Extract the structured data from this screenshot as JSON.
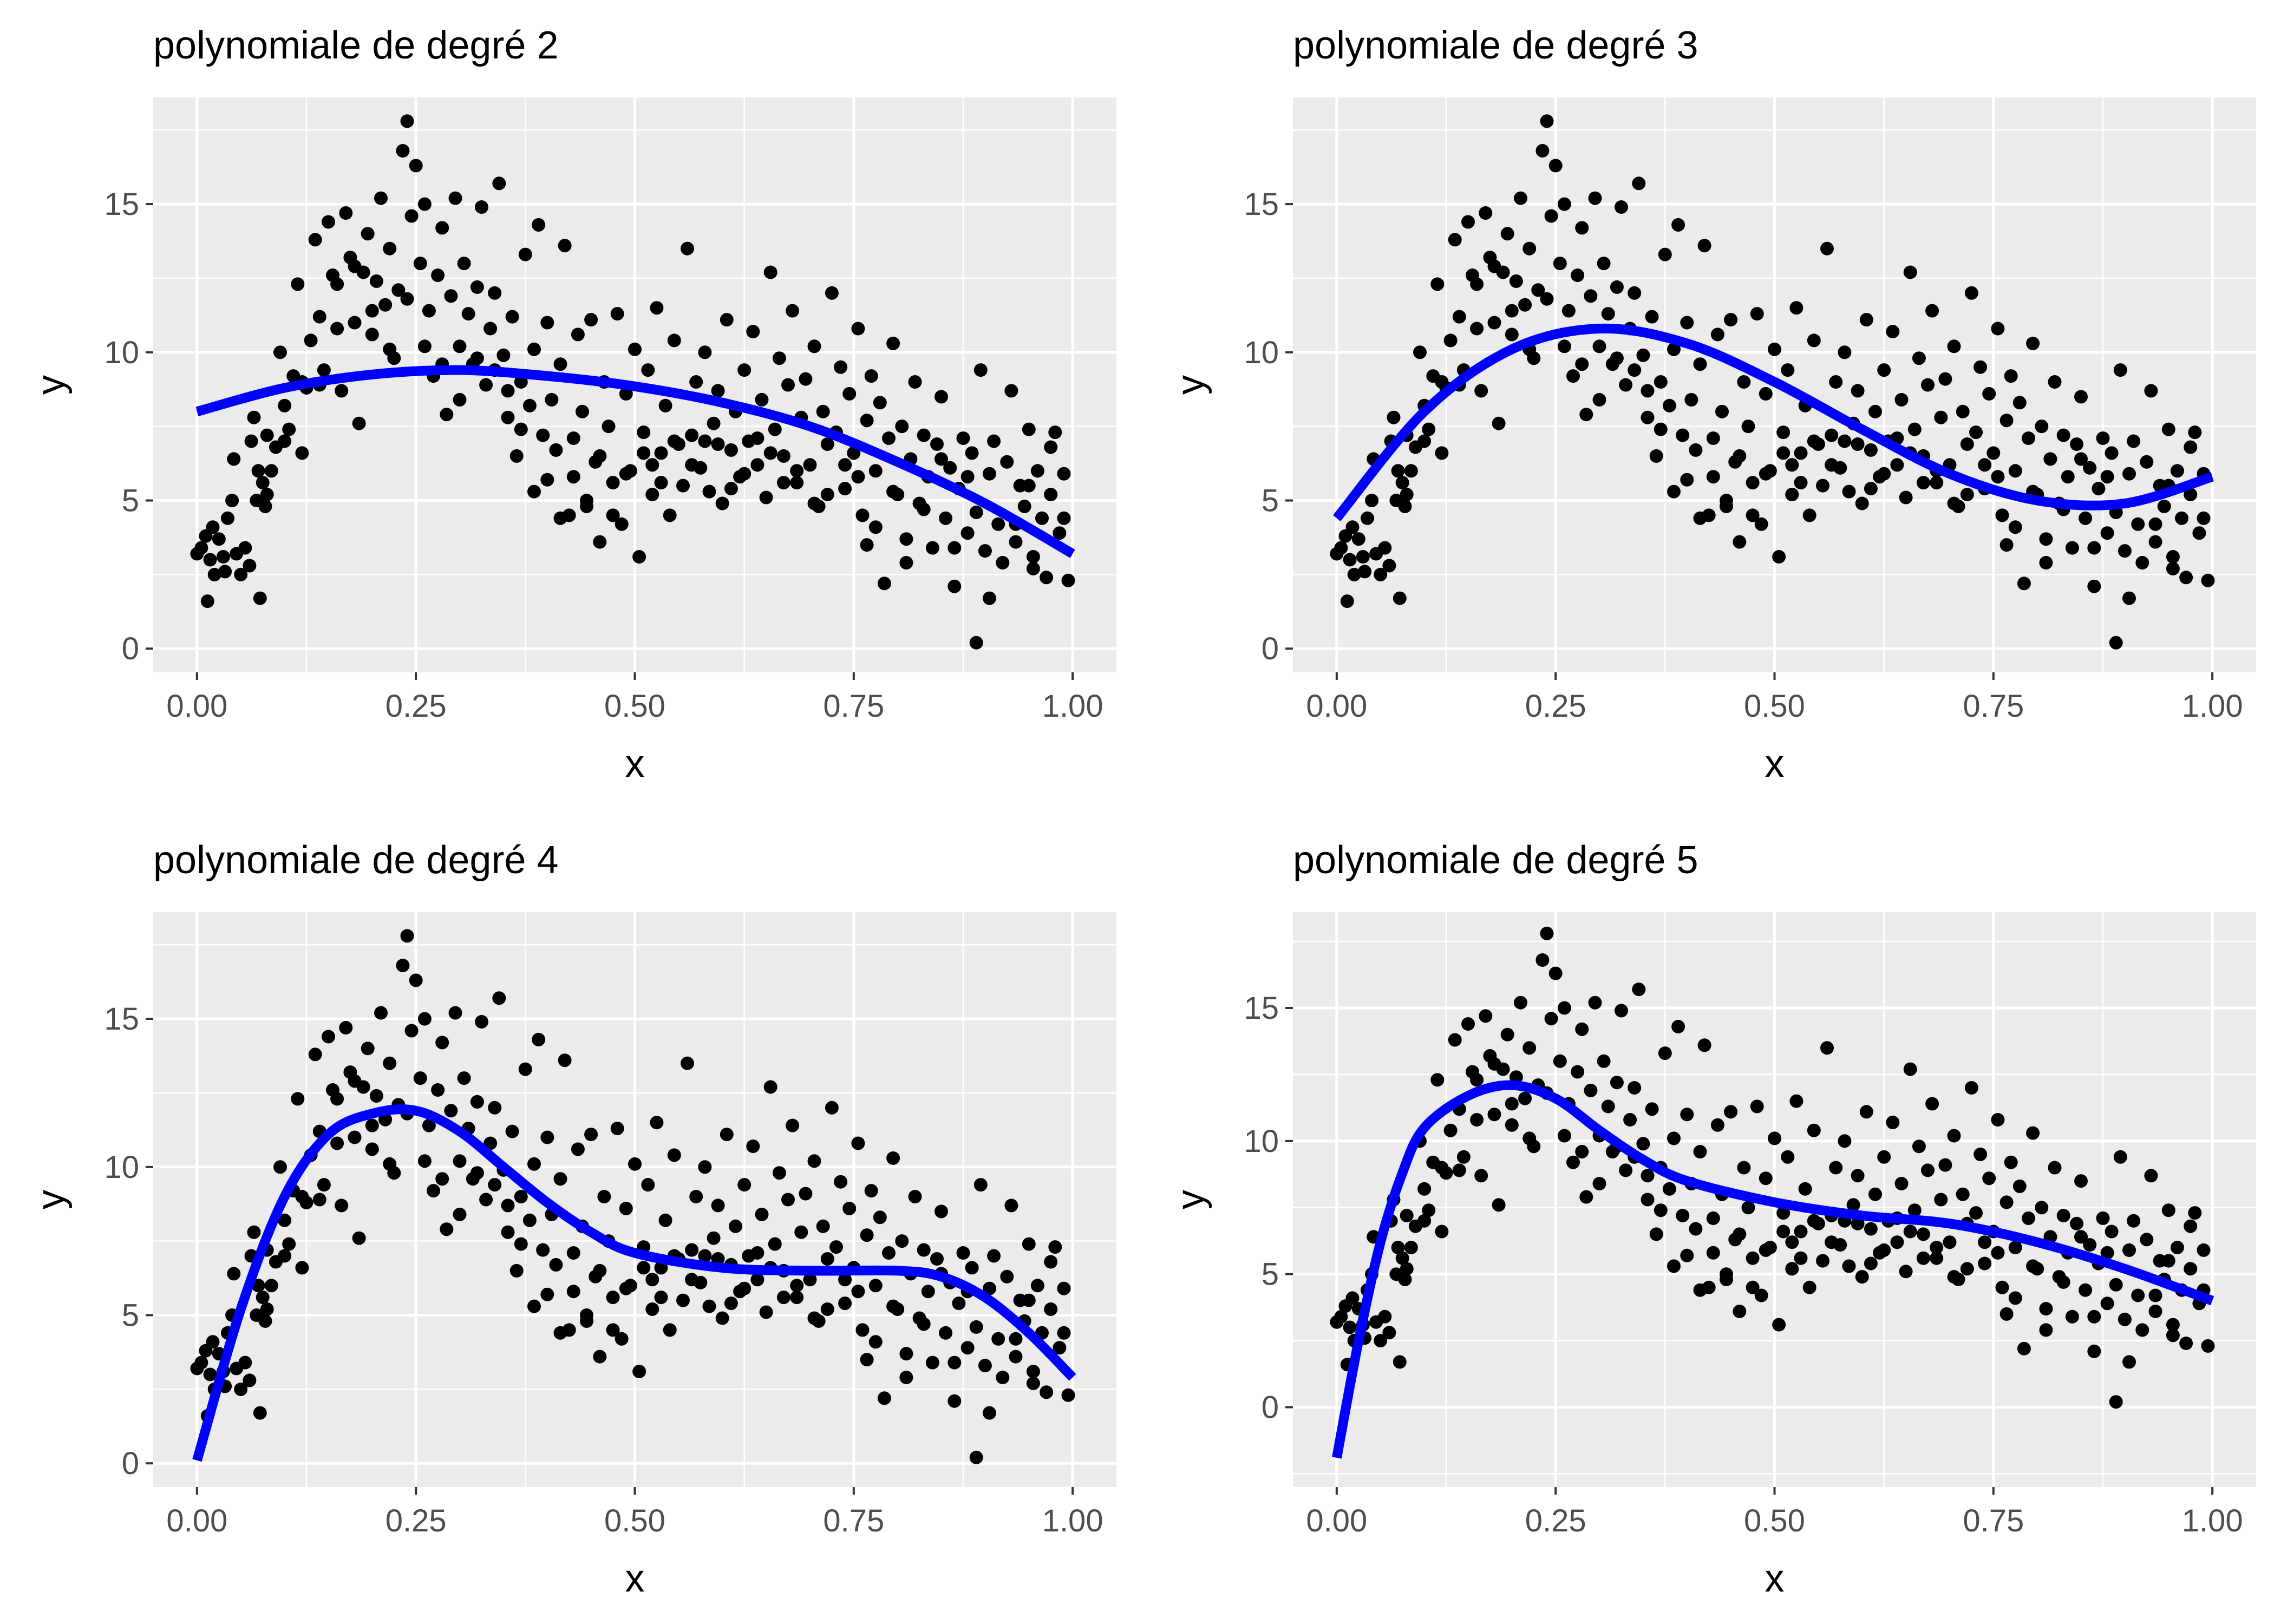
{
  "colors": {
    "panel_background": "#ebebeb",
    "grid_major": "#ffffff",
    "points": "#000000",
    "fit_line": "#0000ff",
    "tick_text": "#4d4d4d"
  },
  "chart_data": [
    {
      "type": "scatter",
      "title": "polynomiale de degré 2",
      "xlabel": "x",
      "ylabel": "y",
      "degree": 2,
      "xlim": [
        -0.05,
        1.05
      ],
      "ylim": [
        -0.8,
        18.6
      ],
      "xticks": [
        0,
        0.25,
        0.5,
        0.75,
        1
      ],
      "xtick_labels": [
        "0.00",
        "0.25",
        "0.50",
        "0.75",
        "1.00"
      ],
      "yticks": [
        0,
        5,
        10,
        15
      ],
      "ytick_labels": [
        "0",
        "5",
        "10",
        "15"
      ],
      "grid": true,
      "legend": "none",
      "fit": {
        "x": [
          0,
          0.1,
          0.2,
          0.3,
          0.4,
          0.5,
          0.6,
          0.7,
          0.8,
          0.9,
          1.0
        ],
        "y": [
          8.0,
          8.8,
          9.25,
          9.4,
          9.2,
          8.85,
          8.3,
          7.5,
          6.3,
          4.9,
          3.2
        ]
      }
    },
    {
      "type": "scatter",
      "title": "polynomiale de degré 3",
      "xlabel": "x",
      "ylabel": "y",
      "degree": 3,
      "xlim": [
        -0.05,
        1.05
      ],
      "ylim": [
        -0.8,
        18.6
      ],
      "xticks": [
        0,
        0.25,
        0.5,
        0.75,
        1
      ],
      "xtick_labels": [
        "0.00",
        "0.25",
        "0.50",
        "0.75",
        "1.00"
      ],
      "yticks": [
        0,
        5,
        10,
        15
      ],
      "ytick_labels": [
        "0",
        "5",
        "10",
        "15"
      ],
      "grid": true,
      "legend": "none",
      "fit": {
        "x": [
          0,
          0.1,
          0.2,
          0.3,
          0.4,
          0.5,
          0.6,
          0.7,
          0.8,
          0.9,
          1.0
        ],
        "y": [
          4.4,
          8.0,
          10.1,
          10.8,
          10.3,
          9.0,
          7.4,
          5.9,
          5.0,
          4.9,
          5.8
        ]
      }
    },
    {
      "type": "scatter",
      "title": "polynomiale de degré 4",
      "xlabel": "x",
      "ylabel": "y",
      "degree": 4,
      "xlim": [
        -0.05,
        1.05
      ],
      "ylim": [
        -0.8,
        18.6
      ],
      "xticks": [
        0,
        0.25,
        0.5,
        0.75,
        1
      ],
      "xtick_labels": [
        "0.00",
        "0.25",
        "0.50",
        "0.75",
        "1.00"
      ],
      "yticks": [
        0,
        5,
        10,
        15
      ],
      "ytick_labels": [
        "0",
        "5",
        "10",
        "15"
      ],
      "grid": true,
      "legend": "none",
      "fit": {
        "x": [
          0,
          0.05,
          0.1,
          0.15,
          0.2,
          0.25,
          0.3,
          0.35,
          0.4,
          0.45,
          0.5,
          0.6,
          0.7,
          0.8,
          0.85,
          0.9,
          0.95,
          1.0
        ],
        "y": [
          0.1,
          5.2,
          9.0,
          11.1,
          11.8,
          11.9,
          11.2,
          10.0,
          8.8,
          7.8,
          7.1,
          6.6,
          6.5,
          6.5,
          6.3,
          5.6,
          4.4,
          2.9
        ]
      }
    },
    {
      "type": "scatter",
      "title": "polynomiale de degré 5",
      "xlabel": "x",
      "ylabel": "y",
      "degree": 5,
      "xlim": [
        -0.05,
        1.05
      ],
      "ylim": [
        -3.0,
        18.6
      ],
      "xticks": [
        0,
        0.25,
        0.5,
        0.75,
        1
      ],
      "xtick_labels": [
        "0.00",
        "0.25",
        "0.50",
        "0.75",
        "1.00"
      ],
      "yticks": [
        0,
        5,
        10,
        15
      ],
      "ytick_labels": [
        "0",
        "5",
        "10",
        "15"
      ],
      "grid": true,
      "legend": "none",
      "fit": {
        "x": [
          0,
          0.025,
          0.05,
          0.075,
          0.1,
          0.15,
          0.2,
          0.25,
          0.3,
          0.35,
          0.4,
          0.5,
          0.6,
          0.7,
          0.8,
          0.9,
          1.0
        ],
        "y": [
          -1.9,
          2.5,
          6.2,
          8.8,
          10.5,
          11.7,
          12.1,
          11.6,
          10.4,
          9.3,
          8.5,
          7.7,
          7.2,
          6.9,
          6.2,
          5.2,
          4.0
        ]
      }
    }
  ]
}
